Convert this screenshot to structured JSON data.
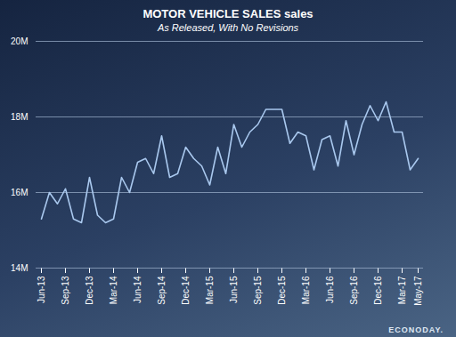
{
  "chart_data": {
    "type": "line",
    "title": "MOTOR VEHICLE SALES sales",
    "subtitle": "As Released, With No Revisions",
    "caption": "ECONODAY.",
    "categories": [
      "Jun-13",
      null,
      null,
      "Sep-13",
      null,
      null,
      "Dec-13",
      null,
      null,
      "Mar-14",
      null,
      null,
      "Jun-14",
      null,
      null,
      "Sep-14",
      null,
      null,
      "Dec-14",
      null,
      null,
      "Mar-15",
      null,
      null,
      "Jun-15",
      null,
      null,
      "Sep-15",
      null,
      null,
      "Dec-15",
      null,
      null,
      "Mar-16",
      null,
      null,
      "Jun-16",
      null,
      null,
      "Sep-16",
      null,
      null,
      "Dec-16",
      null,
      null,
      "Mar-17",
      null,
      "May-17"
    ],
    "values": [
      15.3,
      16.0,
      15.7,
      16.1,
      15.3,
      15.2,
      16.4,
      15.4,
      15.2,
      15.3,
      16.4,
      16.0,
      16.8,
      16.9,
      16.5,
      17.5,
      16.4,
      16.5,
      17.2,
      16.9,
      16.7,
      16.2,
      17.2,
      16.5,
      17.8,
      17.2,
      17.6,
      17.8,
      18.2,
      18.2,
      18.2,
      17.3,
      17.6,
      17.5,
      16.6,
      17.4,
      17.5,
      16.7,
      17.9,
      17.0,
      17.8,
      18.3,
      17.9,
      18.4,
      17.6,
      17.6,
      16.6,
      16.9
    ],
    "color": "#a9c8ee",
    "ylim": [
      14,
      20
    ],
    "yticks": [
      {
        "value": 14,
        "label": "14M"
      },
      {
        "value": 16,
        "label": "16M"
      },
      {
        "value": 18,
        "label": "18M"
      },
      {
        "value": 20,
        "label": "20M"
      }
    ],
    "grid": true
  }
}
